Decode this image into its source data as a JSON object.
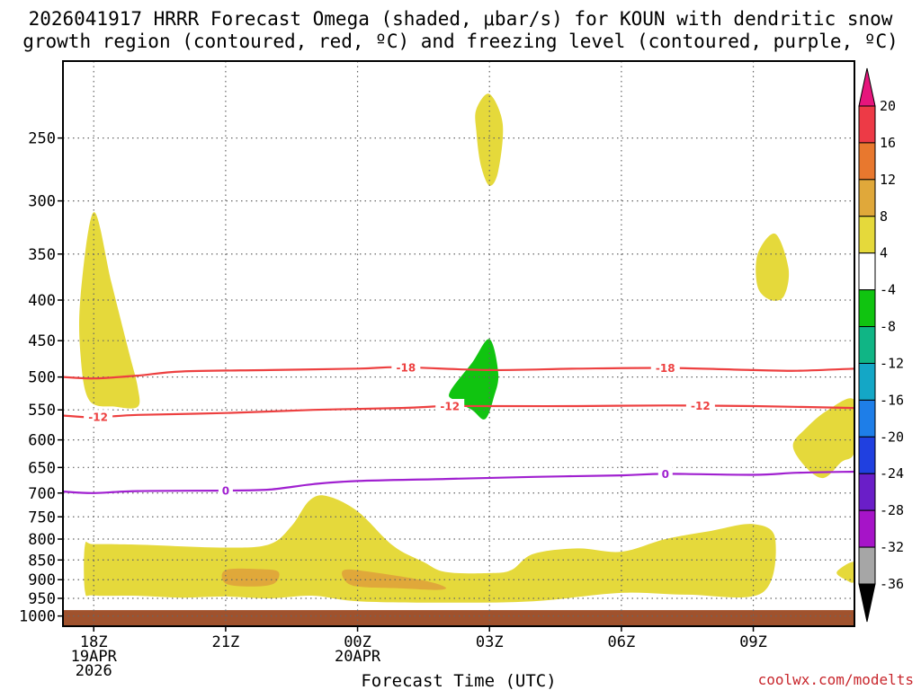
{
  "chart_data": {
    "type": "heatmap",
    "title_line1": "2026041917 HRRR Forecast Omega (shaded, μbar/s) for KOUN with dendritic snow",
    "title_line2": "growth region (contoured, red, ºC) and freezing level (contoured, purple, ºC)",
    "xlabel": "Forecast Time (UTC)",
    "credit": "coolwx.com/modelts",
    "x_range_hours": [
      -0.7,
      17.3
    ],
    "x_ticks": [
      {
        "hour": 0,
        "lines": [
          "18Z",
          "19APR",
          "2026"
        ]
      },
      {
        "hour": 3,
        "lines": [
          "21Z"
        ]
      },
      {
        "hour": 6,
        "lines": [
          "00Z",
          "20APR"
        ]
      },
      {
        "hour": 9,
        "lines": [
          "03Z"
        ]
      },
      {
        "hour": 12,
        "lines": [
          "06Z"
        ]
      },
      {
        "hour": 15,
        "lines": [
          "09Z"
        ]
      }
    ],
    "y_range_hpa": [
      200,
      1030
    ],
    "y_ticks": [
      "250",
      "300",
      "350",
      "400",
      "450",
      "500",
      "550",
      "600",
      "650",
      "700",
      "750",
      "800",
      "850",
      "900",
      "950",
      "1000"
    ],
    "colorbar": {
      "labels": [
        "20",
        "16",
        "12",
        "8",
        "4",
        "-4",
        "-8",
        "-12",
        "-16",
        "-20",
        "-24",
        "-28",
        "-32",
        "-36"
      ],
      "colors": [
        "#ed3a46",
        "#e8782e",
        "#e0a83a",
        "#e5d93b",
        "#ffffff",
        "#10c410",
        "#10b585",
        "#14a7c6",
        "#1e7ee8",
        "#2040e0",
        "#6a1ec8",
        "#a614c8",
        "#a6a6a6"
      ],
      "top_arrow_color": "#e6157c",
      "bottom_arrow_color": "#000000"
    },
    "omega_regions": [
      {
        "name": "low-level-ascent-4-8",
        "value_range": "4 to 8",
        "color": "#e5d93b",
        "points": [
          [
            -0.2,
            815
          ],
          [
            0,
            812
          ],
          [
            1,
            813
          ],
          [
            3,
            820
          ],
          [
            4,
            812
          ],
          [
            4.5,
            770
          ],
          [
            4.9,
            716
          ],
          [
            5.3,
            706
          ],
          [
            6,
            738
          ],
          [
            6.8,
            815
          ],
          [
            7.5,
            855
          ],
          [
            8,
            880
          ],
          [
            9,
            883
          ],
          [
            9.5,
            875
          ],
          [
            10,
            835
          ],
          [
            11,
            822
          ],
          [
            12,
            830
          ],
          [
            13,
            800
          ],
          [
            14,
            782
          ],
          [
            15,
            766
          ],
          [
            15.5,
            800
          ],
          [
            15.2,
            935
          ],
          [
            13.5,
            940
          ],
          [
            12,
            935
          ],
          [
            10,
            958
          ],
          [
            8,
            962
          ],
          [
            6,
            958
          ],
          [
            5,
            943
          ],
          [
            4,
            950
          ],
          [
            3,
            945
          ],
          [
            2,
            948
          ],
          [
            1,
            943
          ],
          [
            0,
            942
          ],
          [
            -0.2,
            930
          ]
        ]
      },
      {
        "name": "low-level-ascent-8-12-west",
        "value_range": "8 to 12",
        "color": "#e0a83a",
        "points": [
          [
            3,
            875
          ],
          [
            3.8,
            873
          ],
          [
            4.2,
            880
          ],
          [
            4.1,
            910
          ],
          [
            3.6,
            918
          ],
          [
            3,
            910
          ]
        ]
      },
      {
        "name": "low-level-ascent-8-12-east",
        "value_range": "8 to 12",
        "color": "#e0a83a",
        "points": [
          [
            5.7,
            875
          ],
          [
            6.3,
            880
          ],
          [
            7.5,
            902
          ],
          [
            8,
            920
          ],
          [
            7.8,
            927
          ],
          [
            7,
            923
          ],
          [
            6,
            918
          ],
          [
            5.7,
            900
          ]
        ]
      },
      {
        "name": "upper-ascent-west",
        "value_range": "4 to 8",
        "color": "#e5d93b",
        "points": [
          [
            -0.3,
            395
          ],
          [
            0,
            310
          ],
          [
            0.4,
            380
          ],
          [
            0.8,
            465
          ],
          [
            1,
            515
          ],
          [
            1,
            545
          ],
          [
            0.5,
            545
          ],
          [
            -0.1,
            535
          ],
          [
            -0.3,
            470
          ]
        ]
      },
      {
        "name": "upper-ascent-high",
        "value_range": "4 to 8",
        "color": "#e5d93b",
        "points": [
          [
            8.7,
            230
          ],
          [
            9,
            220
          ],
          [
            9.3,
            240
          ],
          [
            9.2,
            275
          ],
          [
            9,
            287
          ],
          [
            8.8,
            270
          ],
          [
            8.7,
            245
          ]
        ]
      },
      {
        "name": "upper-ascent-east",
        "value_range": "4 to 8",
        "color": "#e5d93b",
        "points": [
          [
            15.1,
            350
          ],
          [
            15.5,
            330
          ],
          [
            15.8,
            365
          ],
          [
            15.7,
            395
          ],
          [
            15.4,
            400
          ],
          [
            15.1,
            385
          ]
        ]
      },
      {
        "name": "mid-ascent-east-edge",
        "value_range": "4 to 8",
        "color": "#e5d93b",
        "points": [
          [
            17.3,
            535
          ],
          [
            16.7,
            550
          ],
          [
            16.2,
            580
          ],
          [
            15.9,
            610
          ],
          [
            16.2,
            650
          ],
          [
            16.6,
            670
          ],
          [
            17,
            640
          ],
          [
            17.3,
            620
          ]
        ]
      },
      {
        "name": "low-ascent-east-edge",
        "value_range": "4 to 8",
        "color": "#e5d93b",
        "points": [
          [
            17.3,
            855
          ],
          [
            16.9,
            880
          ],
          [
            17.1,
            900
          ],
          [
            17.3,
            905
          ]
        ]
      },
      {
        "name": "mid-level-descent",
        "value_range": "-4 to -8",
        "color": "#10c410",
        "points": [
          [
            8.1,
            522
          ],
          [
            8.6,
            480
          ],
          [
            9,
            448
          ],
          [
            9.2,
            495
          ],
          [
            9.1,
            530
          ],
          [
            8.9,
            565
          ],
          [
            8.6,
            550
          ],
          [
            8.2,
            535
          ]
        ]
      }
    ],
    "dgz_contours": [
      {
        "label": "-18",
        "color": "#ed4040",
        "points": [
          [
            -0.7,
            500
          ],
          [
            0,
            502
          ],
          [
            1,
            498
          ],
          [
            2,
            492
          ],
          [
            4,
            490
          ],
          [
            6,
            488
          ],
          [
            7,
            486
          ],
          [
            9,
            490
          ],
          [
            11,
            488
          ],
          [
            13,
            487
          ],
          [
            15,
            490
          ],
          [
            16,
            491
          ],
          [
            17.3,
            488
          ]
        ],
        "label_positions": [
          7.1,
          13
        ]
      },
      {
        "label": "-12",
        "color": "#ed4040",
        "points": [
          [
            -0.7,
            559
          ],
          [
            0,
            562
          ],
          [
            1,
            558
          ],
          [
            3,
            555
          ],
          [
            5,
            550
          ],
          [
            7,
            547
          ],
          [
            8,
            544
          ],
          [
            9,
            544
          ],
          [
            11,
            544
          ],
          [
            13,
            543
          ],
          [
            15,
            544
          ],
          [
            17.3,
            547
          ]
        ],
        "label_positions": [
          0.1,
          8.1,
          13.8
        ]
      }
    ],
    "freezing_level_contours": [
      {
        "label": "0",
        "color": "#a020d0",
        "points": [
          [
            -0.7,
            697
          ],
          [
            0,
            700
          ],
          [
            1,
            696
          ],
          [
            3,
            695
          ],
          [
            4,
            693
          ],
          [
            5,
            682
          ],
          [
            6,
            676
          ],
          [
            8,
            672
          ],
          [
            10,
            668
          ],
          [
            12,
            665
          ],
          [
            13,
            662
          ],
          [
            15,
            664
          ],
          [
            16,
            660
          ],
          [
            17.3,
            658
          ]
        ],
        "label_positions": [
          3,
          13
        ]
      }
    ],
    "ground": {
      "below_hpa": 983,
      "color": "#a0522d"
    }
  }
}
